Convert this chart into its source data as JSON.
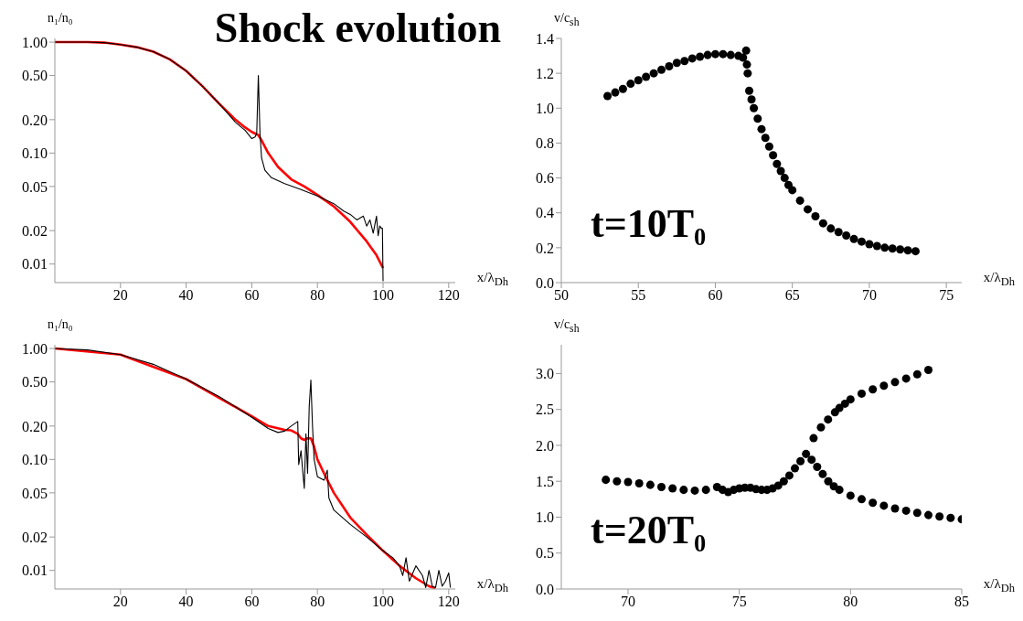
{
  "chart_data": [
    {
      "type": "line",
      "title": "Shock evolution",
      "xlabel": "x/λ$_{Dh}$",
      "ylabel": "n₁/n₀",
      "log": "y",
      "xlim": [
        0,
        122
      ],
      "xticks": [
        20,
        40,
        60,
        80,
        100,
        120
      ],
      "ylim": [
        0.0068,
        1.08
      ],
      "yticks": [
        {
          "value": 0.01,
          "label": "0.01"
        },
        {
          "value": 0.02,
          "label": "0.02"
        },
        {
          "value": 0.05,
          "label": "0.05"
        },
        {
          "value": 0.1,
          "label": "0.10"
        },
        {
          "value": 0.2,
          "label": "0.20"
        },
        {
          "value": 0.5,
          "label": "0.50"
        },
        {
          "value": 1,
          "label": "1.00"
        }
      ],
      "series": [
        {
          "color": "#ff0000",
          "x": [
            0,
            10,
            15,
            20,
            25,
            30,
            35,
            40,
            45,
            50,
            55,
            58,
            60,
            62,
            63,
            65,
            68,
            72,
            76,
            80,
            85,
            90,
            95,
            98,
            100
          ],
          "values": [
            1.0,
            1.0,
            0.99,
            0.95,
            0.9,
            0.82,
            0.7,
            0.55,
            0.4,
            0.28,
            0.2,
            0.17,
            0.155,
            0.145,
            0.13,
            0.1,
            0.075,
            0.058,
            0.05,
            0.042,
            0.033,
            0.024,
            0.016,
            0.012,
            0.0092
          ]
        },
        {
          "color": "#000000",
          "x": [
            0,
            10,
            15,
            20,
            25,
            30,
            35,
            40,
            45,
            50,
            55,
            58,
            60,
            61,
            61.5,
            62,
            62.5,
            63,
            64,
            66,
            70,
            75,
            80,
            85,
            88,
            90,
            92,
            94,
            95,
            96,
            97,
            98,
            98.5,
            99,
            99.5,
            99.8,
            100
          ],
          "values": [
            1.0,
            1.0,
            0.99,
            0.95,
            0.9,
            0.82,
            0.7,
            0.55,
            0.4,
            0.28,
            0.19,
            0.16,
            0.135,
            0.14,
            0.15,
            0.5,
            0.15,
            0.09,
            0.07,
            0.06,
            0.053,
            0.047,
            0.041,
            0.035,
            0.03,
            0.028,
            0.025,
            0.027,
            0.022,
            0.025,
            0.019,
            0.027,
            0.018,
            0.022,
            0.021,
            0.021,
            0.007
          ]
        }
      ]
    },
    {
      "type": "scatter",
      "xlabel": "x/λ$_{Dh}$",
      "ylabel": "v/c$_{sh}$",
      "marker": "circle",
      "xlim": [
        50,
        76
      ],
      "xticks": [
        50,
        55,
        60,
        65,
        70,
        75
      ],
      "ylim": [
        0,
        1.4
      ],
      "yticks": [
        {
          "value": 0,
          "label": "0.0"
        },
        {
          "value": 0.2,
          "label": "0.2"
        },
        {
          "value": 0.4,
          "label": "0.4"
        },
        {
          "value": 0.6,
          "label": "0.6"
        },
        {
          "value": 0.8,
          "label": "0.8"
        },
        {
          "value": 1,
          "label": "1.0"
        },
        {
          "value": 1.2,
          "label": "1.2"
        },
        {
          "value": 1.4,
          "label": "1.4"
        }
      ],
      "annotations": [
        "t=10T₀"
      ],
      "series": [
        {
          "color": "#000000",
          "x": [
            53,
            53.5,
            54,
            54.5,
            55,
            55.5,
            56,
            56.5,
            57,
            57.5,
            58,
            58.5,
            59,
            59.5,
            60,
            60.5,
            61,
            61.5,
            61.8,
            62,
            62.05,
            62.1,
            62.2,
            62.35,
            62.5,
            62.75,
            63,
            63.25,
            63.5,
            63.75,
            64,
            64.25,
            64.5,
            64.75,
            65,
            65.5,
            66,
            66.5,
            67,
            67.5,
            68,
            68.5,
            69,
            69.5,
            70,
            70.5,
            71,
            71.5,
            72,
            72.5,
            73
          ],
          "values": [
            1.07,
            1.09,
            1.11,
            1.14,
            1.16,
            1.18,
            1.2,
            1.22,
            1.24,
            1.26,
            1.27,
            1.285,
            1.295,
            1.305,
            1.31,
            1.31,
            1.305,
            1.3,
            1.29,
            1.33,
            1.25,
            1.2,
            1.1,
            1.05,
            1.0,
            0.94,
            0.88,
            0.83,
            0.78,
            0.73,
            0.68,
            0.64,
            0.6,
            0.56,
            0.53,
            0.47,
            0.42,
            0.38,
            0.34,
            0.31,
            0.29,
            0.27,
            0.25,
            0.235,
            0.22,
            0.21,
            0.2,
            0.195,
            0.19,
            0.185,
            0.18
          ]
        }
      ]
    },
    {
      "type": "line",
      "xlabel": "x/λ$_{Dh}$",
      "ylabel": "n₁/n₀",
      "log": "y",
      "xlim": [
        0,
        122
      ],
      "xticks": [
        20,
        40,
        60,
        80,
        100,
        120
      ],
      "ylim": [
        0.0068,
        1.08
      ],
      "yticks": [
        {
          "value": 0.01,
          "label": "0.01"
        },
        {
          "value": 0.02,
          "label": "0.02"
        },
        {
          "value": 0.05,
          "label": "0.05"
        },
        {
          "value": 0.1,
          "label": "0.10"
        },
        {
          "value": 0.2,
          "label": "0.20"
        },
        {
          "value": 0.5,
          "label": "0.50"
        },
        {
          "value": 1,
          "label": "1.00"
        }
      ],
      "series": [
        {
          "color": "#ff0000",
          "x": [
            0,
            20,
            40,
            60,
            65,
            70,
            72,
            74,
            75,
            76,
            77,
            78,
            79,
            80,
            82,
            85,
            90,
            95,
            100,
            105,
            110,
            114,
            116
          ],
          "values": [
            1,
            0.88,
            0.53,
            0.245,
            0.2,
            0.185,
            0.183,
            0.17,
            0.155,
            0.15,
            0.155,
            0.155,
            0.13,
            0.1,
            0.075,
            0.05,
            0.03,
            0.021,
            0.015,
            0.011,
            0.0085,
            0.0072,
            0.0069
          ]
        },
        {
          "color": "#000000",
          "x": [
            0,
            10,
            20,
            30,
            40,
            50,
            60,
            65,
            68,
            70,
            72,
            74,
            74.3,
            75,
            75.5,
            76,
            76.5,
            77,
            77.5,
            78,
            78.5,
            79,
            80,
            82,
            83,
            83.5,
            85,
            90,
            95,
            100,
            103,
            105,
            106,
            107,
            108,
            110,
            112,
            113,
            114,
            115,
            116,
            117,
            118,
            119,
            120,
            120.5
          ],
          "values": [
            1,
            0.97,
            0.88,
            0.72,
            0.53,
            0.37,
            0.24,
            0.19,
            0.175,
            0.18,
            0.2,
            0.22,
            0.09,
            0.12,
            0.08,
            0.055,
            0.17,
            0.075,
            0.3,
            0.52,
            0.2,
            0.1,
            0.07,
            0.065,
            0.08,
            0.045,
            0.035,
            0.026,
            0.02,
            0.015,
            0.013,
            0.011,
            0.009,
            0.013,
            0.008,
            0.011,
            0.009,
            0.007,
            0.01,
            0.0072,
            0.007,
            0.01,
            0.0072,
            0.008,
            0.0095,
            0.007
          ]
        }
      ]
    },
    {
      "type": "scatter",
      "xlabel": "x/λ$_{Dh}$",
      "ylabel": "v/c$_{sh}$",
      "marker": "circle",
      "xlim": [
        67,
        85
      ],
      "xticks": [
        70,
        75,
        80,
        85
      ],
      "ylim": [
        0,
        3.4
      ],
      "yticks": [
        {
          "value": 0,
          "label": "0.0"
        },
        {
          "value": 0.5,
          "label": "0.5"
        },
        {
          "value": 1,
          "label": "1.0"
        },
        {
          "value": 1.5,
          "label": "1.5"
        },
        {
          "value": 2,
          "label": "2.0"
        },
        {
          "value": 2.5,
          "label": "2.5"
        },
        {
          "value": 3,
          "label": "3.0"
        }
      ],
      "annotations": [
        "t=20T₀"
      ],
      "series": [
        {
          "color": "#000000",
          "x": [
            69,
            69.5,
            70,
            70.5,
            71,
            71.5,
            72,
            72.5,
            73,
            73.5,
            74,
            74.25,
            74.5,
            74.75,
            75,
            75.25,
            75.5,
            75.75,
            76,
            76.25,
            76.5,
            76.75,
            77,
            77.25,
            77.5,
            77.75,
            78,
            78.25,
            78.5,
            78.75,
            79,
            79.25,
            79.5,
            80,
            80.5,
            81,
            81.5,
            82,
            82.5,
            83,
            83.5,
            84,
            84.5,
            85,
            78.34,
            78.67,
            78.99,
            79.3,
            79.5,
            79.75,
            80,
            80.5,
            81,
            81.5,
            82,
            82.5,
            83,
            83.5
          ],
          "values": [
            1.52,
            1.5,
            1.49,
            1.47,
            1.45,
            1.42,
            1.4,
            1.38,
            1.37,
            1.38,
            1.42,
            1.38,
            1.35,
            1.38,
            1.4,
            1.41,
            1.41,
            1.39,
            1.38,
            1.38,
            1.4,
            1.44,
            1.5,
            1.58,
            1.68,
            1.78,
            1.88,
            1.8,
            1.7,
            1.6,
            1.5,
            1.43,
            1.38,
            1.3,
            1.25,
            1.2,
            1.16,
            1.12,
            1.09,
            1.06,
            1.03,
            1.01,
            0.99,
            0.97,
            2.1,
            2.25,
            2.36,
            2.46,
            2.52,
            2.58,
            2.64,
            2.72,
            2.78,
            2.83,
            2.88,
            2.93,
            2.99,
            3.05
          ]
        }
      ]
    }
  ]
}
